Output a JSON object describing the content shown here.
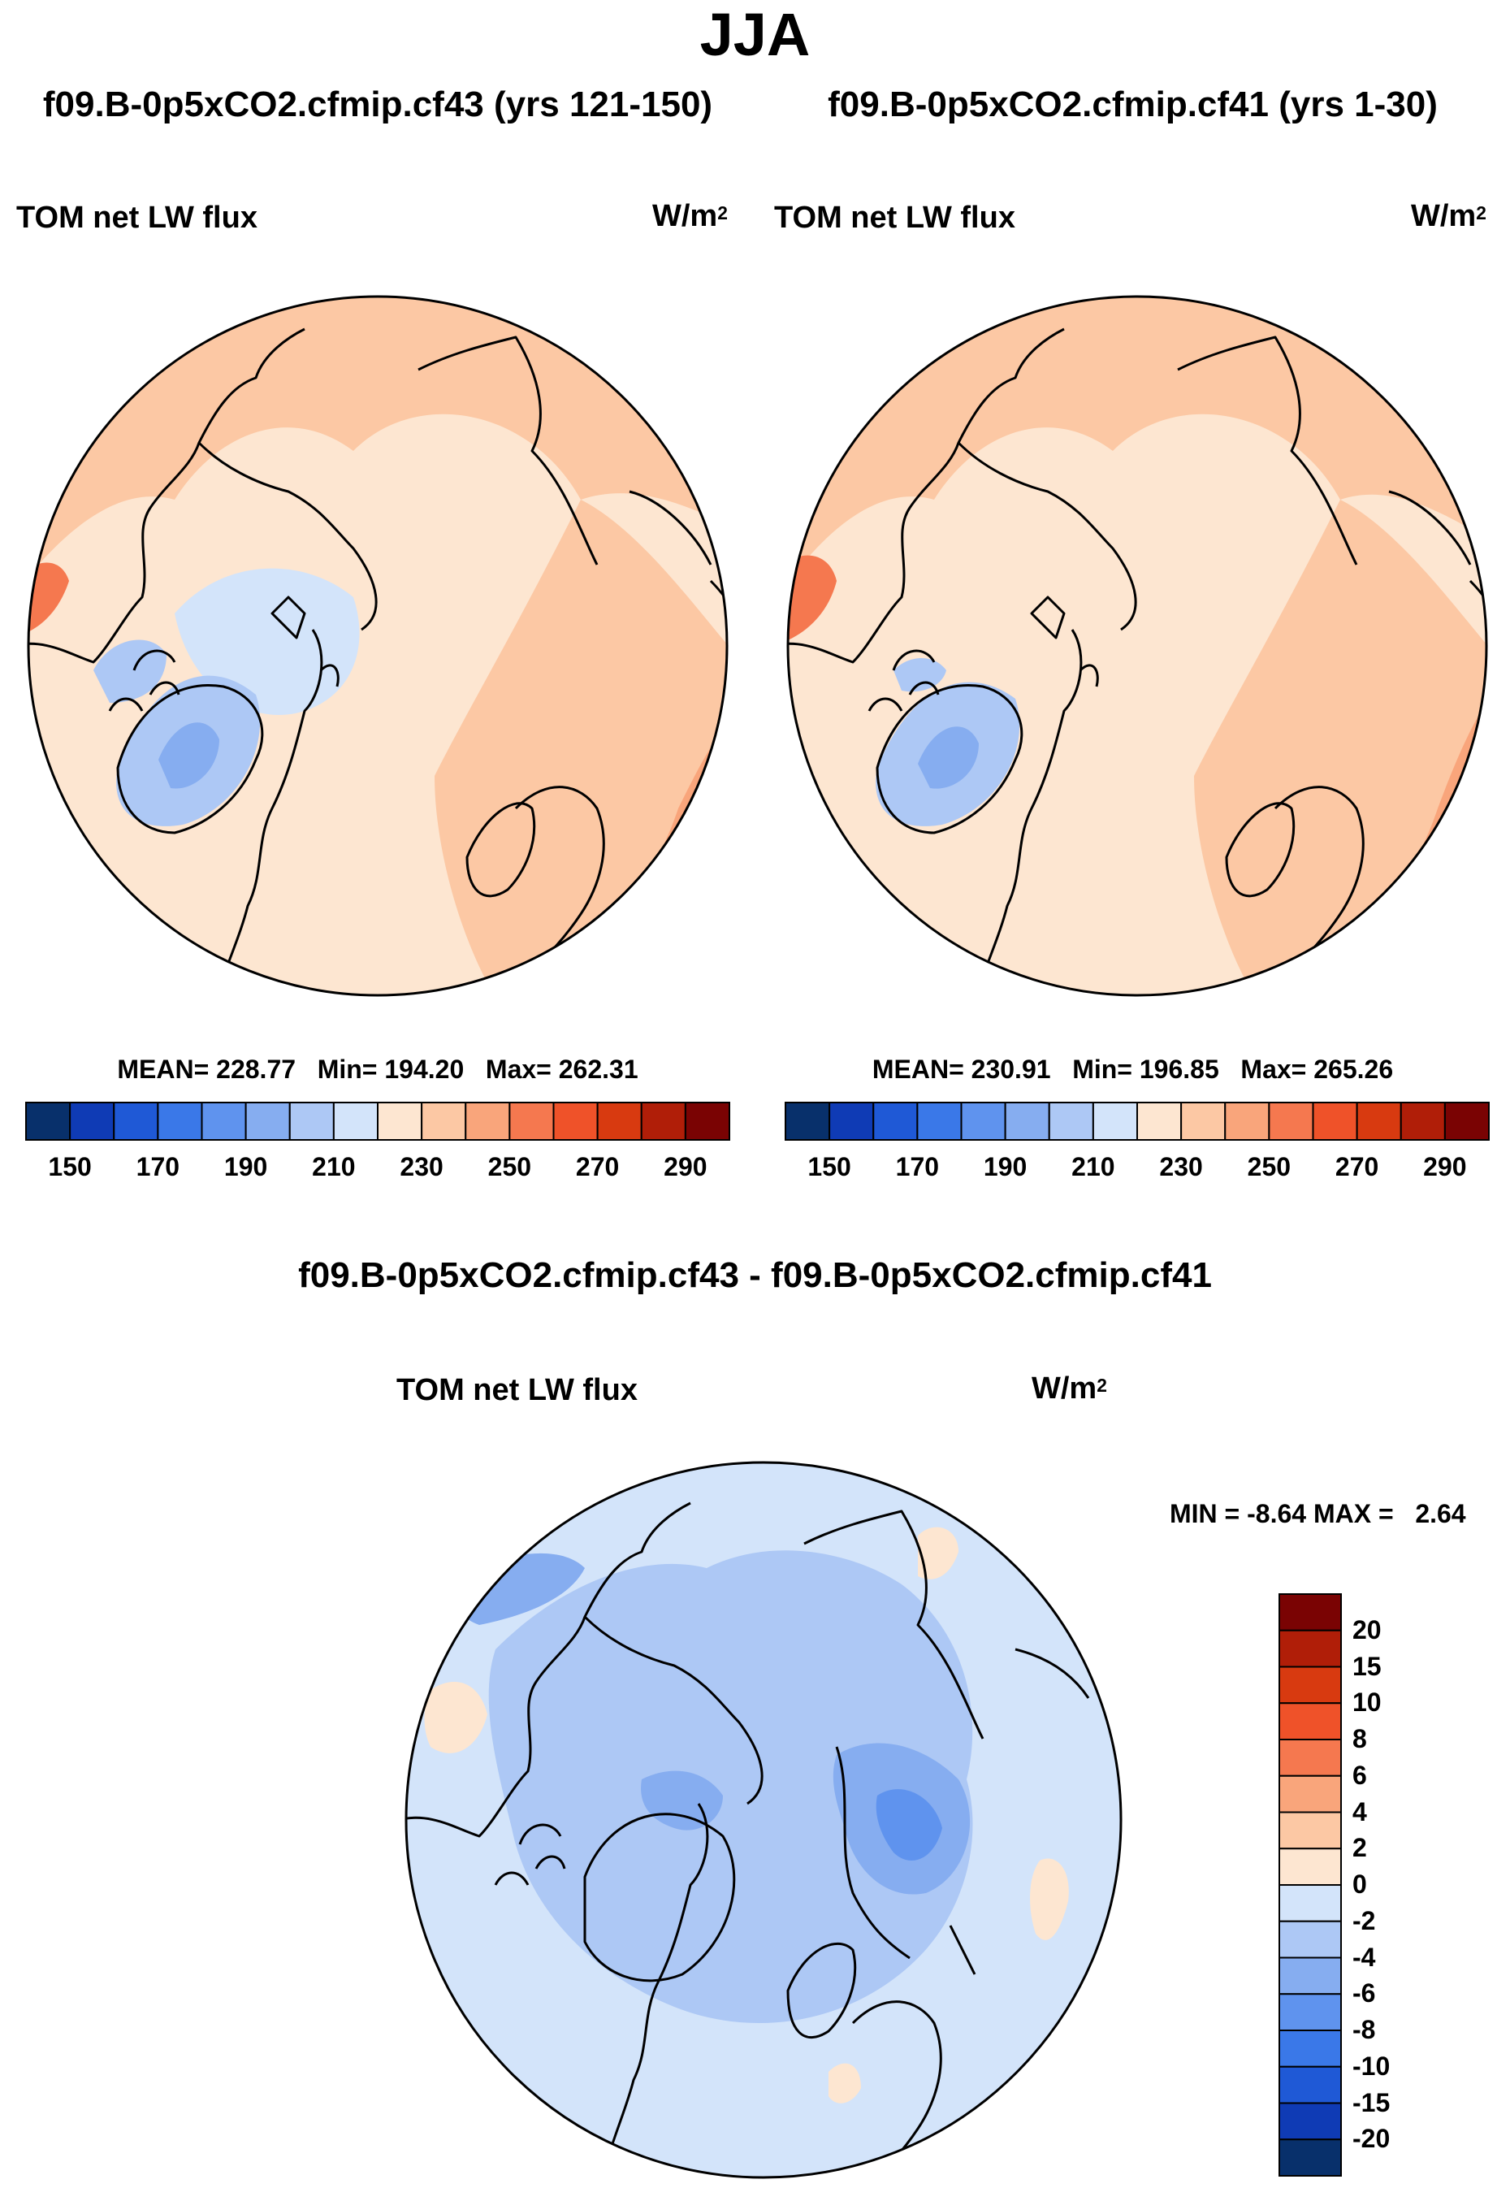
{
  "figure": {
    "title": "JJA",
    "colormap": [
      "#08306b",
      "#0f3bb5",
      "#1f59d6",
      "#3a78e8",
      "#5f93ee",
      "#86adf0",
      "#adc8f5",
      "#d3e4fa",
      "#fde6d1",
      "#fcc8a4",
      "#f9a57b",
      "#f5784f",
      "#ef5229",
      "#d83a10",
      "#b01e08",
      "#7a0303"
    ],
    "coastline_color": "#000000"
  },
  "panels": [
    {
      "case_title": "f09.B-0p5xCO2.cfmip.cf43 (yrs 121-150)",
      "variable": "TOM net LW flux",
      "units_base": "W/m",
      "units_exp": "2",
      "stats": {
        "mean_label": "MEAN=",
        "mean": "228.77",
        "min_label": "Min=",
        "min": "194.20",
        "max_label": "Max=",
        "max": "262.31"
      },
      "colorbar_ticks": [
        "150",
        "170",
        "190",
        "210",
        "230",
        "250",
        "270",
        "290"
      ]
    },
    {
      "case_title": "f09.B-0p5xCO2.cfmip.cf41 (yrs 1-30)",
      "variable": "TOM net LW flux",
      "units_base": "W/m",
      "units_exp": "2",
      "stats": {
        "mean_label": "MEAN=",
        "mean": "230.91",
        "min_label": "Min=",
        "min": "196.85",
        "max_label": "Max=",
        "max": "265.26"
      },
      "colorbar_ticks": [
        "150",
        "170",
        "190",
        "210",
        "230",
        "250",
        "270",
        "290"
      ]
    }
  ],
  "difference": {
    "title": "f09.B-0p5xCO2.cfmip.cf43 - f09.B-0p5xCO2.cfmip.cf41",
    "variable": "TOM net LW flux",
    "units_base": "W/m",
    "units_exp": "2",
    "minmax": {
      "min_label": "MIN =",
      "min": "-8.64",
      "max_label": "MAX =",
      "max": "2.64"
    },
    "colorbar_labels": [
      "20",
      "15",
      "10",
      "8",
      "6",
      "4",
      "2",
      "0",
      "-2",
      "-4",
      "-6",
      "-8",
      "-10",
      "-15",
      "-20"
    ],
    "colormap": [
      "#7a0303",
      "#b01e08",
      "#d83a10",
      "#ef5229",
      "#f5784f",
      "#f9a57b",
      "#fcc8a4",
      "#fde6d1",
      "#d3e4fa",
      "#adc8f5",
      "#86adf0",
      "#5f93ee",
      "#3a78e8",
      "#1f59d6",
      "#0f3bb5",
      "#08306b"
    ]
  },
  "chart_data": [
    {
      "type": "heatmap",
      "title": "TOM net LW flux",
      "subtitle": "f09.B-0p5xCO2.cfmip.cf43 (yrs 121-150)",
      "units": "W/m2",
      "projection": "north polar stereographic",
      "season": "JJA",
      "mean": 228.77,
      "min": 194.2,
      "max": 262.31,
      "color_levels": [
        150,
        160,
        170,
        180,
        190,
        200,
        210,
        220,
        230,
        240,
        250,
        260,
        270,
        280,
        290
      ]
    },
    {
      "type": "heatmap",
      "title": "TOM net LW flux",
      "subtitle": "f09.B-0p5xCO2.cfmip.cf41 (yrs 1-30)",
      "units": "W/m2",
      "projection": "north polar stereographic",
      "season": "JJA",
      "mean": 230.91,
      "min": 196.85,
      "max": 265.26,
      "color_levels": [
        150,
        160,
        170,
        180,
        190,
        200,
        210,
        220,
        230,
        240,
        250,
        260,
        270,
        280,
        290
      ]
    },
    {
      "type": "heatmap",
      "title": "TOM net LW flux",
      "subtitle": "f09.B-0p5xCO2.cfmip.cf43 - f09.B-0p5xCO2.cfmip.cf41",
      "units": "W/m2",
      "projection": "north polar stereographic",
      "season": "JJA",
      "min": -8.64,
      "max": 2.64,
      "color_levels": [
        -20,
        -15,
        -10,
        -8,
        -6,
        -4,
        -2,
        0,
        2,
        4,
        6,
        8,
        10,
        15,
        20
      ]
    }
  ]
}
